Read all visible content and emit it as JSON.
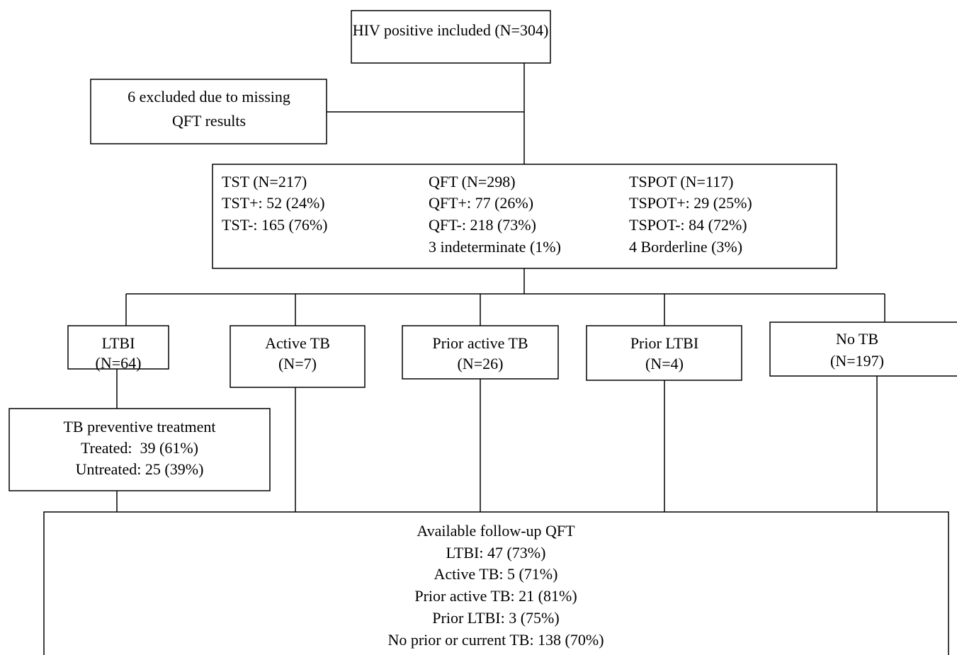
{
  "nodes": [
    {
      "lines": [
        "HIV positive included (N=304)"
      ]
    },
    {
      "lines": [
        "6 excluded due to missing",
        "QFT results"
      ]
    },
    {
      "columns": [
        [
          "TST (N=217)",
          "TST+: 52 (24%)",
          "TST-: 165 (76%)"
        ],
        [
          "QFT (N=298)",
          "QFT+: 77 (26%)",
          "QFT-: 218 (73%)",
          "3 indeterminate (1%)"
        ],
        [
          "TSPOT (N=117)",
          "TSPOT+: 29 (25%)",
          "TSPOT-: 84 (72%)",
          "4 Borderline (3%)"
        ]
      ]
    },
    {
      "lines": [
        "LTBI",
        "(N=64)"
      ]
    },
    {
      "lines": [
        "Active TB",
        "(N=7)"
      ]
    },
    {
      "lines": [
        "Prior active TB",
        "(N=26)"
      ]
    },
    {
      "lines": [
        "Prior LTBI",
        "(N=4)"
      ]
    },
    {
      "lines": [
        "No TB",
        "(N=197)"
      ]
    },
    {
      "lines": [
        "TB preventive treatment",
        "Treated:  39 (61%)",
        "Untreated: 25 (39%)"
      ]
    },
    {
      "lines": [
        "Available follow-up QFT",
        "LTBI: 47 (73%)",
        "Active TB: 5 (71%)",
        "Prior active TB: 21 (81%)",
        "Prior LTBI: 3 (75%)",
        "No prior or current TB: 138 (70%)"
      ]
    }
  ]
}
